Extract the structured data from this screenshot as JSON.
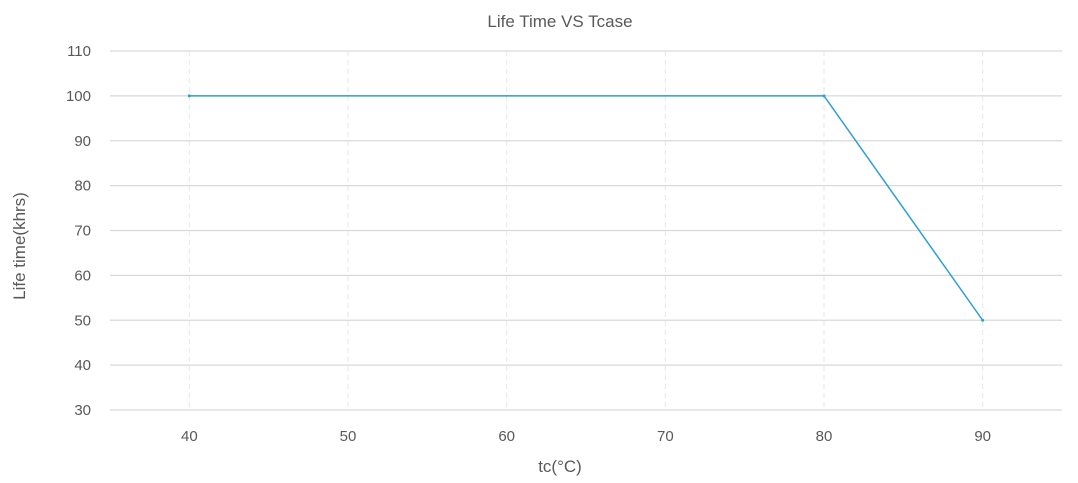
{
  "chart_data": {
    "type": "line",
    "title": "Life Time VS Tcase",
    "xlabel": "tc(°C)",
    "ylabel": "Life time(khrs)",
    "x_ticks": [
      "40",
      "50",
      "60",
      "70",
      "80",
      "90"
    ],
    "y_ticks": [
      "30",
      "40",
      "50",
      "60",
      "70",
      "80",
      "90",
      "100",
      "110"
    ],
    "xlim": [
      35,
      95
    ],
    "ylim": [
      30,
      110
    ],
    "series": [
      {
        "x": [
          40,
          80,
          90
        ],
        "y": [
          100,
          100,
          50
        ]
      }
    ],
    "grid": {
      "horizontal": "solid",
      "vertical": "dashed"
    },
    "colors": {
      "line": "#2e9fd3",
      "grid_h": "#d9d9d9",
      "grid_v": "#e6e6e6",
      "text": "#595959"
    }
  }
}
